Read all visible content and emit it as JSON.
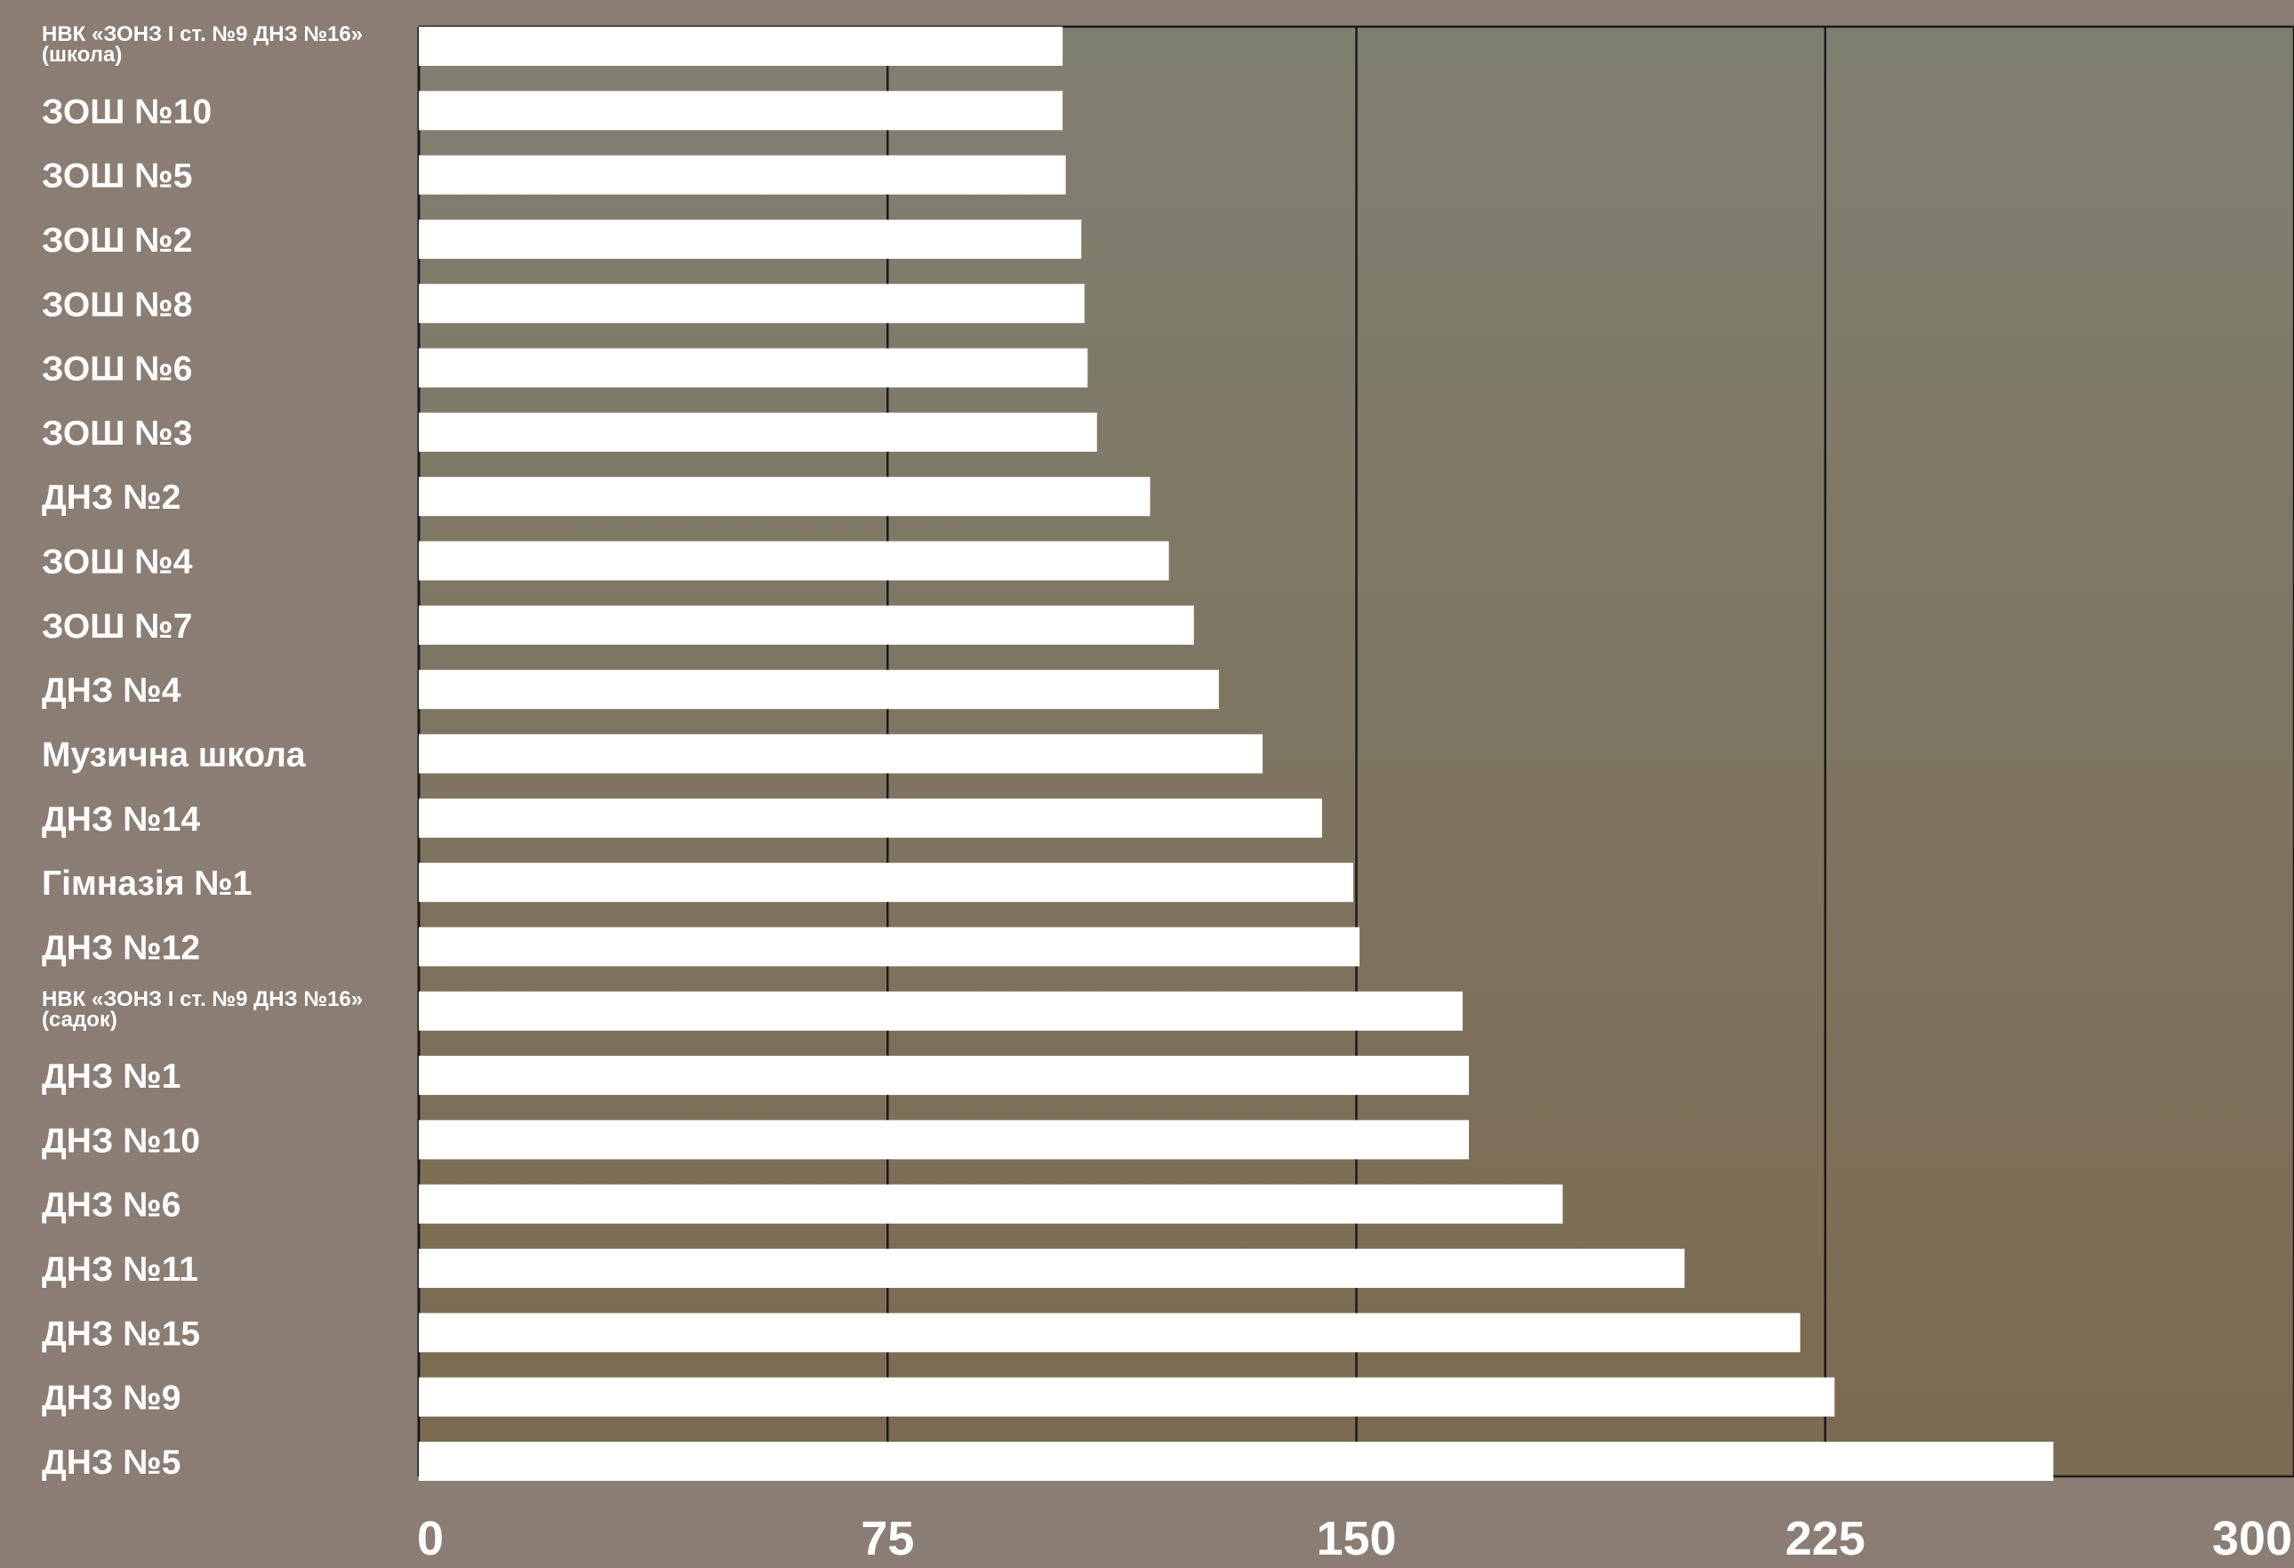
{
  "chart_data": {
    "type": "bar",
    "orientation": "horizontal",
    "categories": [
      [
        "НВК «ЗОНЗ І ст. №9 ДНЗ №16»",
        "(школа)"
      ],
      "ЗОШ №10",
      "ЗОШ №5",
      "ЗОШ №2",
      "ЗОШ №8",
      "ЗОШ №6",
      "ЗОШ №3",
      "ДНЗ №2",
      "ЗОШ №4",
      "ЗОШ №7",
      "ДНЗ №4",
      "Музична школа",
      "ДНЗ №14",
      "Гімназія №1",
      "ДНЗ №12",
      [
        "НВК «ЗОНЗ І ст. №9 ДНЗ №16»",
        "(садок)"
      ],
      "ДНЗ №1",
      "ДНЗ №10",
      "ДНЗ №6",
      "ДНЗ №11",
      "ДНЗ №15",
      "ДНЗ №9",
      "ДНЗ №5"
    ],
    "values": [
      103,
      103,
      103.5,
      106,
      106.5,
      107,
      108.5,
      117,
      120,
      124,
      128,
      135,
      144.5,
      149.5,
      150.5,
      167,
      168,
      168,
      183,
      202.5,
      221,
      226.5,
      261.5
    ],
    "xlim": [
      0,
      300
    ],
    "x_ticks": [
      "0",
      "75",
      "150",
      "225",
      "300"
    ],
    "title": "",
    "xlabel": "",
    "ylabel": "",
    "grid": "vertical",
    "legend": "none",
    "colors": {
      "background": "#8a7d73",
      "plot_top": "#808072",
      "plot_bottom": "#7c6a51",
      "bar": "#ffffff",
      "text": "#ffffff",
      "grid": "#1a1a1a"
    }
  }
}
